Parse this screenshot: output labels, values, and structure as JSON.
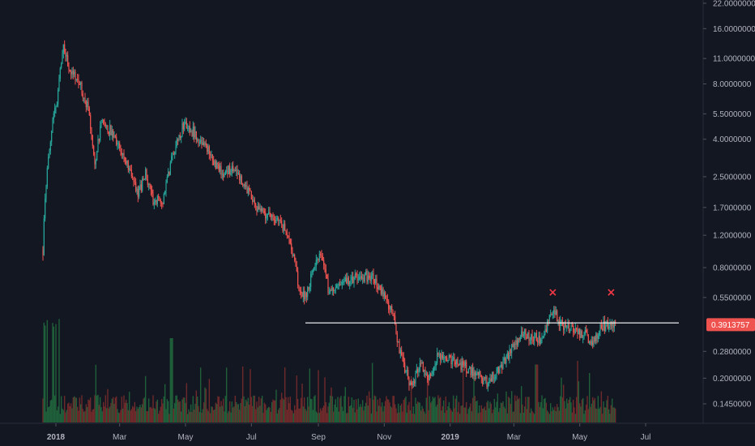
{
  "chart_data": {
    "type": "candlestick",
    "y_scale": "log",
    "ylim": [
      0.12,
      22.0
    ],
    "xlim": [
      "2017-12-15",
      "2019-07-31"
    ],
    "grid": false,
    "y_ticks": [
      {
        "value": 22.0,
        "label": "22.0000000"
      },
      {
        "value": 16.0,
        "label": "16.0000000"
      },
      {
        "value": 11.0,
        "label": "11.0000000"
      },
      {
        "value": 8.0,
        "label": "8.0000000"
      },
      {
        "value": 5.5,
        "label": "5.5000000"
      },
      {
        "value": 4.0,
        "label": "4.0000000"
      },
      {
        "value": 2.5,
        "label": "2.5000000"
      },
      {
        "value": 1.7,
        "label": "1.7000000"
      },
      {
        "value": 1.2,
        "label": "1.2000000"
      },
      {
        "value": 0.8,
        "label": "0.8000000"
      },
      {
        "value": 0.55,
        "label": "0.5500000"
      },
      {
        "value": 0.28,
        "label": "0.2800000"
      },
      {
        "value": 0.2,
        "label": "0.2000000"
      },
      {
        "value": 0.145,
        "label": "0.1450000"
      }
    ],
    "x_ticks": [
      {
        "date": "2018-01-01",
        "label": "2018",
        "bold": true
      },
      {
        "date": "2018-03-01",
        "label": "Mar",
        "bold": false
      },
      {
        "date": "2018-05-01",
        "label": "May",
        "bold": false
      },
      {
        "date": "2018-07-01",
        "label": "Jul",
        "bold": false
      },
      {
        "date": "2018-09-01",
        "label": "Sep",
        "bold": false
      },
      {
        "date": "2018-11-01",
        "label": "Nov",
        "bold": false
      },
      {
        "date": "2019-01-01",
        "label": "2019",
        "bold": true
      },
      {
        "date": "2019-03-01",
        "label": "Mar",
        "bold": false
      },
      {
        "date": "2019-05-01",
        "label": "May",
        "bold": false
      },
      {
        "date": "2019-07-01",
        "label": "Jul",
        "bold": false
      }
    ],
    "price_path": [
      [
        "2017-12-20",
        1.0
      ],
      [
        "2017-12-22",
        2.0
      ],
      [
        "2017-12-28",
        4.5
      ],
      [
        "2018-01-03",
        7.0
      ],
      [
        "2018-01-08",
        13.5
      ],
      [
        "2018-01-12",
        10.5
      ],
      [
        "2018-01-16",
        9.0
      ],
      [
        "2018-01-22",
        8.5
      ],
      [
        "2018-02-01",
        5.5
      ],
      [
        "2018-02-06",
        3.0
      ],
      [
        "2018-02-12",
        4.8
      ],
      [
        "2018-02-20",
        4.5
      ],
      [
        "2018-03-01",
        3.5
      ],
      [
        "2018-03-10",
        2.8
      ],
      [
        "2018-03-18",
        2.0
      ],
      [
        "2018-03-25",
        2.6
      ],
      [
        "2018-04-02",
        1.8
      ],
      [
        "2018-04-10",
        1.9
      ],
      [
        "2018-04-20",
        3.5
      ],
      [
        "2018-04-30",
        4.9
      ],
      [
        "2018-05-06",
        4.5
      ],
      [
        "2018-05-15",
        4.0
      ],
      [
        "2018-05-25",
        3.2
      ],
      [
        "2018-06-05",
        2.5
      ],
      [
        "2018-06-12",
        2.8
      ],
      [
        "2018-06-25",
        2.3
      ],
      [
        "2018-07-05",
        1.7
      ],
      [
        "2018-07-15",
        1.55
      ],
      [
        "2018-07-25",
        1.45
      ],
      [
        "2018-08-01",
        1.3
      ],
      [
        "2018-08-08",
        0.95
      ],
      [
        "2018-08-14",
        0.62
      ],
      [
        "2018-08-20",
        0.55
      ],
      [
        "2018-08-28",
        0.82
      ],
      [
        "2018-09-03",
        0.98
      ],
      [
        "2018-09-10",
        0.62
      ],
      [
        "2018-09-20",
        0.62
      ],
      [
        "2018-10-01",
        0.7
      ],
      [
        "2018-10-10",
        0.72
      ],
      [
        "2018-10-20",
        0.72
      ],
      [
        "2018-11-01",
        0.58
      ],
      [
        "2018-11-10",
        0.42
      ],
      [
        "2018-11-14",
        0.3
      ],
      [
        "2018-11-20",
        0.22
      ],
      [
        "2018-11-26",
        0.185
      ],
      [
        "2018-12-05",
        0.24
      ],
      [
        "2018-12-12",
        0.19
      ],
      [
        "2018-12-20",
        0.26
      ],
      [
        "2018-12-28",
        0.26
      ],
      [
        "2019-01-05",
        0.25
      ],
      [
        "2019-01-15",
        0.23
      ],
      [
        "2019-01-25",
        0.21
      ],
      [
        "2019-02-05",
        0.19
      ],
      [
        "2019-02-10",
        0.21
      ],
      [
        "2019-02-20",
        0.25
      ],
      [
        "2019-03-01",
        0.3
      ],
      [
        "2019-03-10",
        0.35
      ],
      [
        "2019-03-25",
        0.33
      ],
      [
        "2019-04-02",
        0.4
      ],
      [
        "2019-04-06",
        0.48
      ],
      [
        "2019-04-12",
        0.4
      ],
      [
        "2019-04-25",
        0.36
      ],
      [
        "2019-05-05",
        0.35
      ],
      [
        "2019-05-12",
        0.31
      ],
      [
        "2019-05-20",
        0.38
      ],
      [
        "2019-05-30",
        0.4
      ],
      [
        "2019-06-03",
        0.3914
      ]
    ],
    "last_price": {
      "value": 0.3913757,
      "label": "0.3913757"
    },
    "horizontal_line": {
      "value": 0.4,
      "start": "2018-08-20",
      "end": "2019-08-20"
    },
    "annotations": [
      {
        "date": "2019-04-06",
        "value": 0.56,
        "label": "×",
        "color": "#f23645"
      },
      {
        "date": "2019-05-30",
        "value": 0.56,
        "label": "×",
        "color": "#f23645"
      }
    ],
    "volume_note": "volume histogram at bottom, green up / red down"
  },
  "colors": {
    "background": "#131722",
    "up": "#26a69a",
    "down": "#ef5350",
    "volume_up": "#1f5f3a",
    "volume_down": "#6e2a2a",
    "axis_text": "#b2b5be",
    "axis_border": "#2a2e39",
    "price_tag": "#ef5350",
    "support_line": "#ffffff",
    "marker": "#f23645"
  }
}
